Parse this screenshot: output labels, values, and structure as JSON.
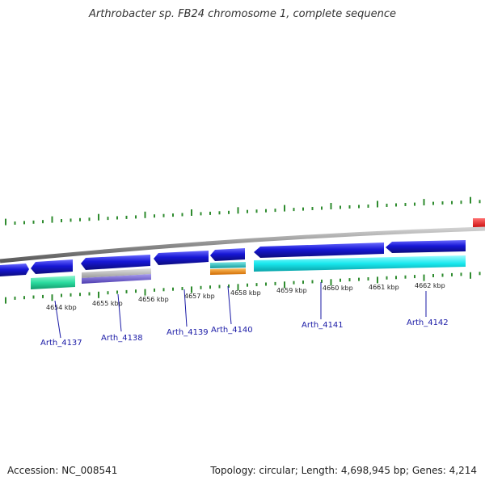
{
  "title": "Arthrobacter sp. FB24 chromosome 1, complete sequence",
  "footer": {
    "accession": "Accession: NC_008541",
    "summary": "Topology: circular; Length: 4,698,945 bp; Genes: 4,214"
  },
  "colors": {
    "backbone": "#8c8c8c",
    "tick": "#2e8b2e",
    "blue_gene": "#1717d6",
    "cyan": "#19e8ee",
    "green": "#2bdc9f",
    "grey": "#b4b4b4",
    "purple": "#7a6ad0",
    "orange": "#f08a12",
    "teal": "#26c4c4",
    "red": "#ff1a1a",
    "label": "#1a1aa6"
  },
  "scale": {
    "labels": [
      "4654 kbp",
      "4655 kbp",
      "4656 kbp",
      "4657 kbp",
      "4658 kbp",
      "4659 kbp",
      "4660 kbp",
      "4661 kbp",
      "4662 kbp"
    ]
  },
  "genes": [
    {
      "name": "Arth_4137"
    },
    {
      "name": "Arth_4138"
    },
    {
      "name": "Arth_4139"
    },
    {
      "name": "Arth_4140"
    },
    {
      "name": "Arth_4141"
    },
    {
      "name": "Arth_4142"
    }
  ]
}
